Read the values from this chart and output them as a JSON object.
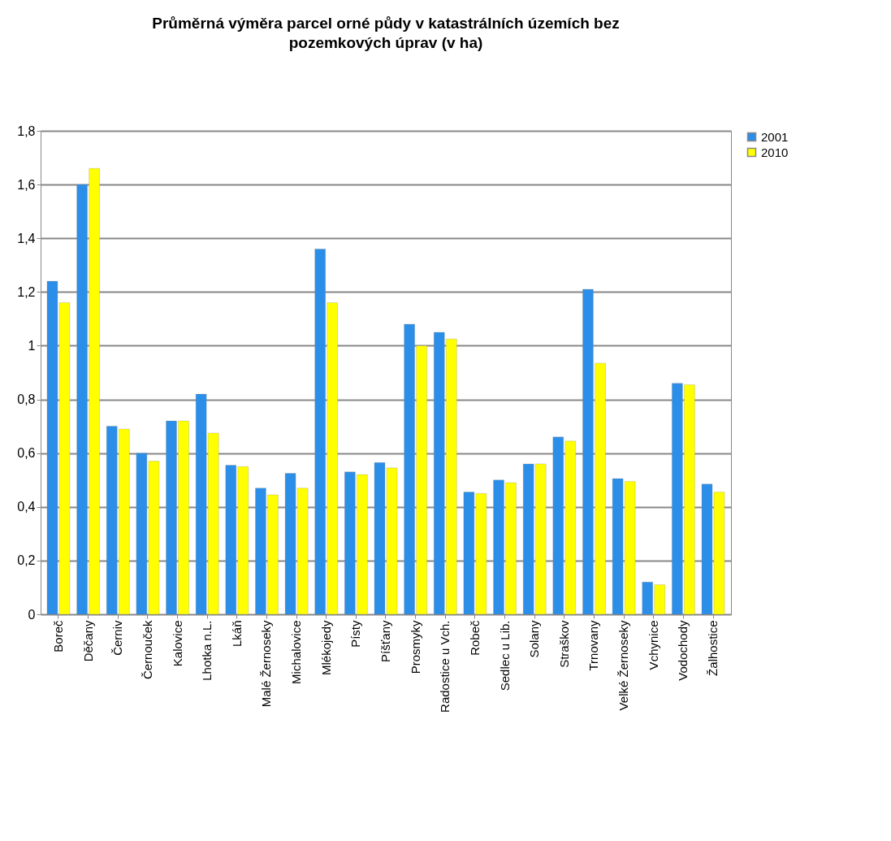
{
  "chart_data": {
    "type": "bar",
    "title": "Průměrná výměra parcel orné půdy v katastrálních územích bez pozemkových úprav (v ha)",
    "categories": [
      "Boreč",
      "Děčany",
      "Černiv",
      "Černouček",
      "Kalovice",
      "Lhotka n.L.",
      "Lkáň",
      "Malé Žernoseky",
      "Michalovice",
      "Mlékojedy",
      "Písty",
      "Píšťany",
      "Prosmyky",
      "Radostice u Vch.",
      "Robeč",
      "Sedlec u Lib.",
      "Solany",
      "Straškov",
      "Trnovany",
      "Velké Žernoseky",
      "Vchynice",
      "Vodochody",
      "Žalhostice"
    ],
    "series": [
      {
        "name": "2001",
        "color": "#2b8ee8",
        "values": [
          1.24,
          1.6,
          0.7,
          0.6,
          0.72,
          0.82,
          0.555,
          0.47,
          0.525,
          1.36,
          0.53,
          0.565,
          1.08,
          1.05,
          0.455,
          0.5,
          0.56,
          0.66,
          1.21,
          0.505,
          0.12,
          0.86,
          0.485
        ]
      },
      {
        "name": "2010",
        "color": "#ffff00",
        "values": [
          1.16,
          1.66,
          0.69,
          0.57,
          0.72,
          0.675,
          0.55,
          0.445,
          0.47,
          1.16,
          0.52,
          0.545,
          1.0,
          1.025,
          0.45,
          0.49,
          0.56,
          0.645,
          0.935,
          0.495,
          0.11,
          0.855,
          0.455
        ]
      }
    ],
    "ylim": [
      0,
      1.8
    ],
    "yticks": [
      {
        "value": 0,
        "label": "0"
      },
      {
        "value": 0.2,
        "label": "0,2"
      },
      {
        "value": 0.4,
        "label": "0,4"
      },
      {
        "value": 0.6,
        "label": "0,6"
      },
      {
        "value": 0.8,
        "label": "0,8"
      },
      {
        "value": 1,
        "label": "1"
      },
      {
        "value": 1.2,
        "label": "1,2"
      },
      {
        "value": 1.4,
        "label": "1,4"
      },
      {
        "value": 1.6,
        "label": "1,6"
      },
      {
        "value": 1.8,
        "label": "1,8"
      }
    ],
    "grid": "y",
    "legend": "right"
  }
}
